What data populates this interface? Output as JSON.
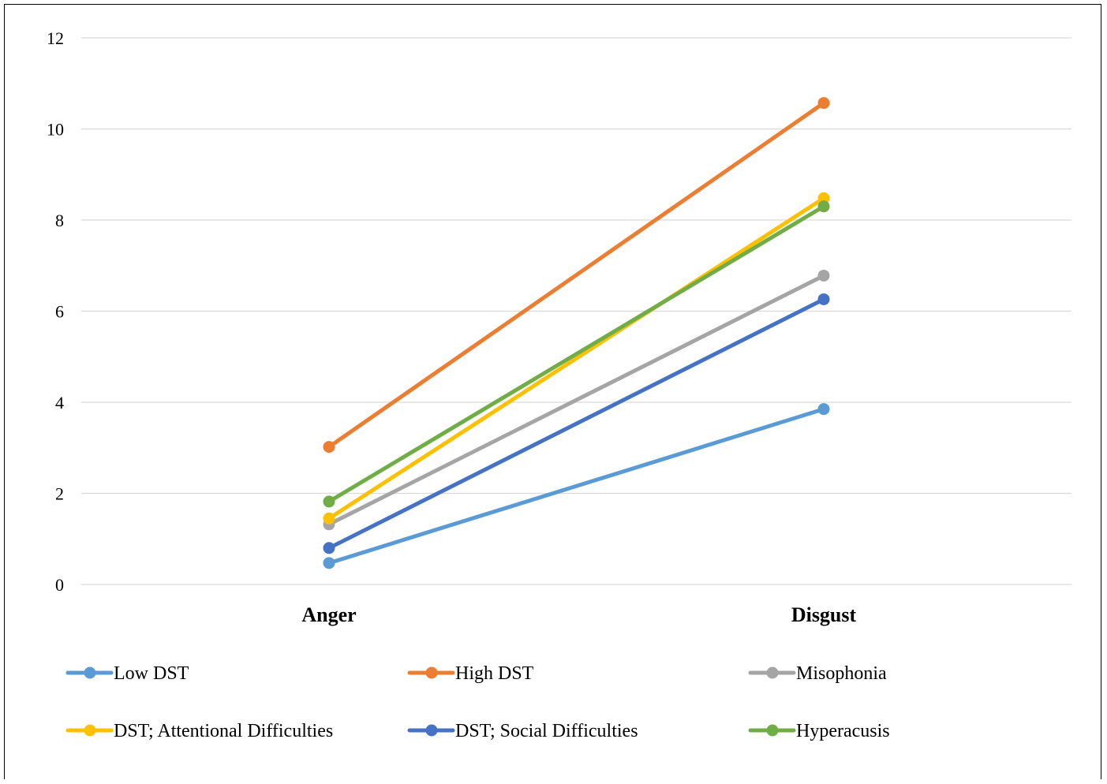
{
  "chart_data": {
    "type": "line",
    "categories": [
      "Anger",
      "Disgust"
    ],
    "ylim": [
      0,
      12
    ],
    "yticks": [
      0,
      2,
      4,
      6,
      8,
      10,
      12
    ],
    "ytick_labels": [
      "0",
      "2",
      "4",
      "6",
      "8",
      "10",
      "12"
    ],
    "grid": true,
    "legend_position": "bottom",
    "series": [
      {
        "name": "Low DST",
        "color": "#5B9BD5",
        "values": [
          0.47,
          3.85
        ]
      },
      {
        "name": "High DST",
        "color": "#ED7D31",
        "values": [
          3.02,
          10.57
        ]
      },
      {
        "name": "Misophonia",
        "color": "#A5A5A5",
        "values": [
          1.32,
          6.78
        ]
      },
      {
        "name": "DST; Attentional Difficulties",
        "color": "#FFC000",
        "values": [
          1.45,
          8.48
        ]
      },
      {
        "name": "DST; Social Difficulties",
        "color": "#4472C4",
        "values": [
          0.8,
          6.26
        ]
      },
      {
        "name": "Hyperacusis",
        "color": "#70AD47",
        "values": [
          1.82,
          8.3
        ]
      }
    ]
  }
}
